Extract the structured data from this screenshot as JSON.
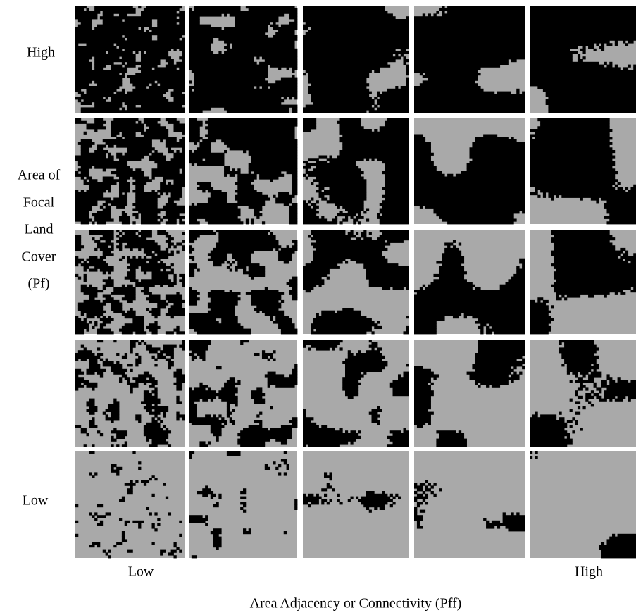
{
  "y_axis": {
    "high_label": "High",
    "title_lines": [
      "Area of",
      "Focal",
      "Land",
      "Cover",
      "(Pf)"
    ],
    "low_label": "Low"
  },
  "x_axis": {
    "low_label": "Low",
    "high_label": "High",
    "title": "Area Adjacency or Connectivity (Pff)"
  }
}
